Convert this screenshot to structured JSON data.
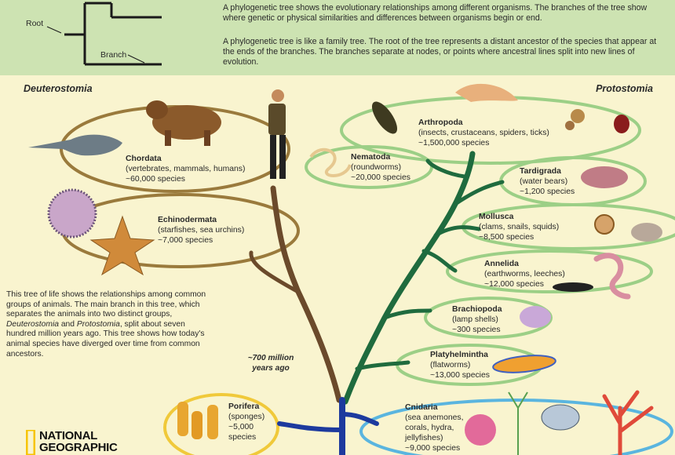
{
  "header": {
    "diagram_labels": {
      "root": "Root",
      "branch": "Branch"
    },
    "paragraph1": "A phylogenetic tree shows the evolutionary relationships among different organisms. The branches of the tree show where genetic or physical similarities and differences between organisms begin or end.",
    "paragraph2": "A phylogenetic tree is like a family tree. The root of the tree represents a distant ancestor of the species that appear at the ends of the branches. The branches separate at nodes, or points where ancestral lines split into new lines of evolution."
  },
  "sides": {
    "left": "Deuterostomia",
    "right": "Protostomia"
  },
  "groups": {
    "chordata": {
      "name": "Chordata",
      "desc": "(vertebrates, mammals, humans)",
      "species": "~60,000 species"
    },
    "echinodermata": {
      "name": "Echinodermata",
      "desc": "(starfishes, sea urchins)",
      "species": "~7,000 species"
    },
    "arthropoda": {
      "name": "Arthropoda",
      "desc": "(insects, crustaceans, spiders, ticks)",
      "species": "~1,500,000 species"
    },
    "nematoda": {
      "name": "Nematoda",
      "desc": "(roundworms)",
      "species": "~20,000 species"
    },
    "tardigrada": {
      "name": "Tardigrada",
      "desc": "(water bears)",
      "species": "~1,200 species"
    },
    "mollusca": {
      "name": "Mollusca",
      "desc": "(clams, snails, squids)",
      "species": "~8,500 species"
    },
    "annelida": {
      "name": "Annelida",
      "desc": "(earthworms, leeches)",
      "species": "~12,000 species"
    },
    "brachiopoda": {
      "name": "Brachiopoda",
      "desc": "(lamp shells)",
      "species": "~300 species"
    },
    "platyhelminthes": {
      "name": "Platyhelmintha",
      "desc": "(flatworms)",
      "species": "~13,000 species"
    },
    "porifera": {
      "name": "Porifera",
      "desc1": "(sponges)",
      "desc2": "~5,000",
      "species": "species"
    },
    "cnidaria": {
      "name": "Cnidaria",
      "desc1": "(sea anemones,",
      "desc2": "corals, hydra,",
      "desc3": "jellyfishes)",
      "species": "~9,000 species"
    }
  },
  "description": {
    "part1": "This tree of life shows the relationships among common groups of animals. The main branch in this tree, which separates the animals into two distinct groups, ",
    "italic1": "Deuterostomia",
    "part2": " and ",
    "italic2": "Protostomia",
    "part3": ", split about seven hundred million years ago. This tree shows how today's animal species have diverged over time from common ancestors."
  },
  "time_label": "~700 million years ago",
  "logo": {
    "line1": "NATIONAL",
    "line2": "GEOGRAPHIC"
  },
  "colors": {
    "header_bg": "#cde3b2",
    "page_bg": "#f9f4cf",
    "deuterostomia_branch": "#6b4a2b",
    "protostomia_branch": "#1f6b3e",
    "root_branch": "#1d3a9e",
    "chordata_ellipse": "#9a7a3c",
    "protostomia_ellipse": "#9ccf86",
    "porifera_ellipse": "#f0c93a",
    "cnidaria_ellipse": "#5ab5df",
    "logo_yellow": "#f6c400"
  }
}
